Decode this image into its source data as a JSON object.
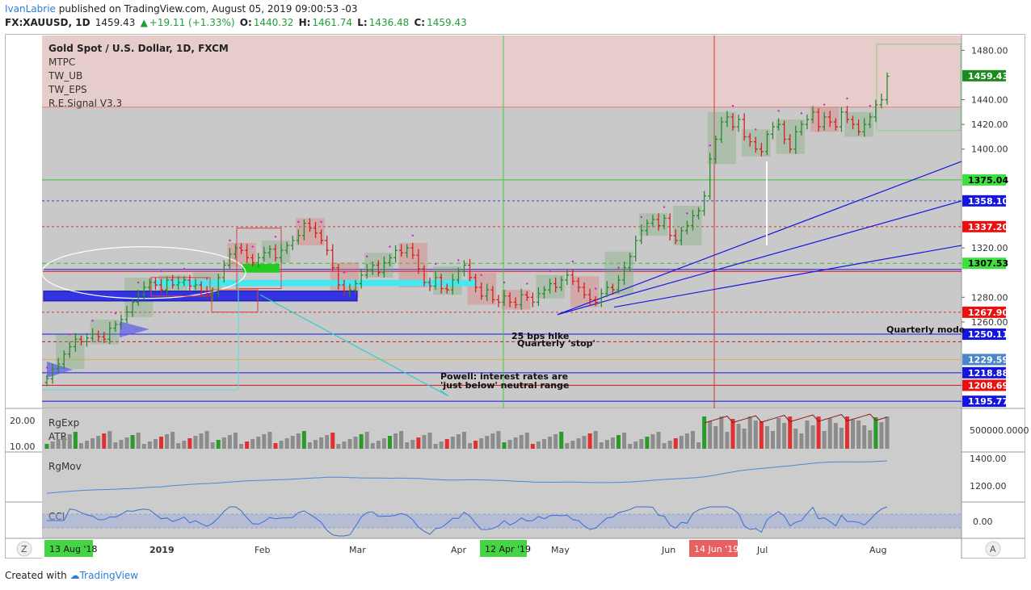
{
  "header": {
    "author": "IvanLabrie",
    "published_text": "published on TradingView.com, August 05, 2019 09:00:53 -03",
    "symbol": "FX:XAUUSD, 1D",
    "last": "1459.43",
    "change": "+19.11 (+1.33%)",
    "o_label": "O:",
    "o_value": "1440.32",
    "h_label": "H:",
    "h_value": "1461.74",
    "l_label": "L:",
    "l_value": "1436.48",
    "c_label": "C:",
    "c_value": "1459.43"
  },
  "legend": {
    "title": "Gold Spot / U.S. Dollar, 1D, FXCM",
    "items": [
      "MTPC",
      "TW_UB",
      "TW_EPS",
      "R.E.Signal V3.3"
    ]
  },
  "annotations": {
    "hike1": "25 bps hike",
    "hike2": "Quarterly 'stop'",
    "powell1": "Powell: interest rates are",
    "powell2": "'just below' neutral range",
    "quarterly_mode": "Quarterly mode"
  },
  "colors": {
    "up": "#2a8a2a",
    "down": "#d42020",
    "upper_zone": "#e7cccc",
    "panel_bg": "#c9c9c9",
    "accent_blue": "#1515e0"
  },
  "chart_data": {
    "type": "bar",
    "title": "Gold Spot / U.S. Dollar, 1D, FXCM",
    "yaxis_ticks": [
      1480,
      1440,
      1420,
      1400,
      1320,
      1280,
      1260
    ],
    "ylim": [
      1190,
      1492
    ],
    "price_labels": [
      {
        "value": "1459.43",
        "price": 1459.43,
        "bg": "#1d8a1d",
        "fg": "#ffffff"
      },
      {
        "value": "1375.04",
        "price": 1375.04,
        "bg": "#3ee03e",
        "fg": "#000000"
      },
      {
        "value": "1358.10",
        "price": 1358.1,
        "bg": "#1515e0",
        "fg": "#ffffff"
      },
      {
        "value": "1337.20",
        "price": 1337.2,
        "bg": "#e81010",
        "fg": "#ffffff"
      },
      {
        "value": "1307.53",
        "price": 1307.53,
        "bg": "#3ee03e",
        "fg": "#000000"
      },
      {
        "value": "1267.90",
        "price": 1267.9,
        "bg": "#e81010",
        "fg": "#ffffff"
      },
      {
        "value": "1250.11",
        "price": 1250.11,
        "bg": "#1515e0",
        "fg": "#ffffff"
      },
      {
        "value": "1229.59",
        "price": 1229.59,
        "bg": "#4a86c8",
        "fg": "#ffffff"
      },
      {
        "value": "1218.88",
        "price": 1218.88,
        "bg": "#1515e0",
        "fg": "#ffffff"
      },
      {
        "value": "1208.69",
        "price": 1208.69,
        "bg": "#e81010",
        "fg": "#ffffff"
      },
      {
        "value": "1195.77",
        "price": 1195.77,
        "bg": "#1515e0",
        "fg": "#ffffff"
      }
    ],
    "horizontal_levels": [
      {
        "price": 1375.04,
        "color": "#3ac23a",
        "dash": ""
      },
      {
        "price": 1358.1,
        "color": "#3a3ae0",
        "dash": "3,3"
      },
      {
        "price": 1337.2,
        "color": "#e03030",
        "dash": "3,3"
      },
      {
        "price": 1307.53,
        "color": "#22cc22",
        "dash": "5,4"
      },
      {
        "price": 1302.5,
        "color": "#1515e0",
        "dash": ""
      },
      {
        "price": 1301.0,
        "color": "#e01010",
        "dash": ""
      },
      {
        "price": 1267.9,
        "color": "#e03030",
        "dash": "3,3"
      },
      {
        "price": 1250.11,
        "color": "#1515e0",
        "dash": ""
      },
      {
        "price": 1244.0,
        "color": "#e01010",
        "dash": "4,3"
      },
      {
        "price": 1229.59,
        "color": "#d8b040",
        "dash": ""
      },
      {
        "price": 1218.88,
        "color": "#1515e0",
        "dash": ""
      },
      {
        "price": 1208.69,
        "color": "#e01010",
        "dash": ""
      },
      {
        "price": 1195.77,
        "color": "#1515e0",
        "dash": ""
      }
    ],
    "month_labels": [
      "2019",
      "Feb",
      "Mar",
      "Apr",
      "May",
      "Jun",
      "Jul",
      "Aug"
    ],
    "date_markers": [
      {
        "label": "13 Aug '18",
        "bg": "#44d444",
        "fg": "#111111"
      },
      {
        "label": "12 Apr '19",
        "bg": "#44d444",
        "fg": "#111111"
      },
      {
        "label": "14 Jun '19",
        "bg": "#e86060",
        "fg": "#ffffff"
      }
    ],
    "closes": [
      1214,
      1222,
      1226,
      1234,
      1240,
      1246,
      1244,
      1247,
      1250,
      1248,
      1246,
      1255,
      1258,
      1262,
      1268,
      1276,
      1282,
      1288,
      1292,
      1290,
      1286,
      1294,
      1290,
      1292,
      1294,
      1289,
      1290,
      1285,
      1281,
      1283,
      1296,
      1306,
      1315,
      1320,
      1318,
      1312,
      1308,
      1312,
      1316,
      1319,
      1312,
      1318,
      1322,
      1326,
      1330,
      1340,
      1336,
      1332,
      1326,
      1318,
      1304,
      1290,
      1284,
      1286,
      1291,
      1298,
      1302,
      1306,
      1300,
      1308,
      1312,
      1318,
      1316,
      1320,
      1314,
      1303,
      1292,
      1289,
      1296,
      1287,
      1286,
      1294,
      1301,
      1306,
      1296,
      1288,
      1281,
      1286,
      1278,
      1276,
      1281,
      1276,
      1274,
      1282,
      1280,
      1276,
      1283,
      1286,
      1291,
      1288,
      1294,
      1298,
      1293,
      1288,
      1282,
      1278,
      1276,
      1283,
      1288,
      1286,
      1294,
      1304,
      1313,
      1326,
      1334,
      1340,
      1343,
      1338,
      1344,
      1330,
      1326,
      1334,
      1338,
      1346,
      1350,
      1362,
      1392,
      1408,
      1422,
      1426,
      1418,
      1424,
      1410,
      1406,
      1400,
      1398,
      1412,
      1418,
      1420,
      1408,
      1400,
      1414,
      1420,
      1424,
      1430,
      1418,
      1426,
      1422,
      1418,
      1430,
      1424,
      1420,
      1414,
      1420,
      1426,
      1436,
      1440,
      1459
    ],
    "indicators": {
      "rgexp": {
        "label": "RgExp",
        "ticks": [
          "20.00",
          "10.00"
        ]
      },
      "atr": {
        "label": "ATR"
      },
      "volume": {
        "tick": "500000.0000"
      },
      "rgmov": {
        "label": "RgMov",
        "ticks": [
          "1400.00",
          "1200.00"
        ]
      },
      "cci": {
        "label": "CCI",
        "ticks": [
          "0.00"
        ]
      }
    }
  },
  "footer": {
    "created_with": "Created with",
    "brand": "TradingView"
  },
  "axis_buttons": {
    "left": "Z",
    "right": "A"
  }
}
